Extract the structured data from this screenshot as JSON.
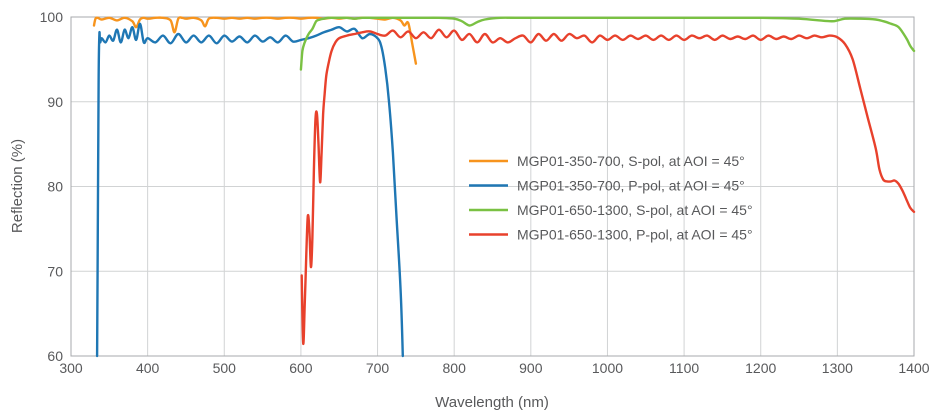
{
  "chart_data": {
    "type": "line",
    "title": "",
    "xlabel": "Wavelength (nm)",
    "ylabel": "Reflection (%)",
    "xlim": [
      300,
      1400
    ],
    "ylim": [
      60,
      100
    ],
    "xticks": [
      300,
      400,
      500,
      600,
      700,
      800,
      900,
      1000,
      1100,
      1200,
      1300,
      1400
    ],
    "yticks": [
      60,
      70,
      80,
      90,
      100
    ],
    "grid": true,
    "legend_position": "center-right",
    "series": [
      {
        "name": "MGP01-350-700, S-pol, at AOI = 45°",
        "color": "#f7941d",
        "x": [
          330,
          332,
          335,
          340,
          350,
          360,
          370,
          380,
          385,
          390,
          395,
          400,
          410,
          420,
          430,
          435,
          440,
          445,
          450,
          460,
          470,
          475,
          480,
          490,
          500,
          510,
          520,
          530,
          540,
          550,
          560,
          570,
          580,
          590,
          600,
          610,
          620,
          630,
          640,
          650,
          660,
          670,
          680,
          690,
          700,
          710,
          720,
          730,
          735,
          740,
          745,
          750
        ],
        "y": [
          99.0,
          99.8,
          99.9,
          99.7,
          99.9,
          99.6,
          99.9,
          99.5,
          98.8,
          99.7,
          99.9,
          99.8,
          99.9,
          99.9,
          99.6,
          98.2,
          99.8,
          99.9,
          99.8,
          99.9,
          99.6,
          98.9,
          99.8,
          99.9,
          99.8,
          99.9,
          99.8,
          99.9,
          99.8,
          99.9,
          99.9,
          99.8,
          99.9,
          99.9,
          99.8,
          99.9,
          99.9,
          99.8,
          99.9,
          99.8,
          99.9,
          99.8,
          99.9,
          99.9,
          99.8,
          99.7,
          99.9,
          99.6,
          99.0,
          99.3,
          97.0,
          94.5
        ]
      },
      {
        "name": "MGP01-350-700, P-pol, at AOI = 45°",
        "color": "#1f77b4",
        "x": [
          334,
          335,
          336,
          337,
          338,
          340,
          345,
          350,
          355,
          360,
          365,
          370,
          375,
          380,
          385,
          390,
          395,
          400,
          410,
          420,
          430,
          440,
          450,
          460,
          470,
          480,
          490,
          500,
          510,
          520,
          530,
          540,
          550,
          560,
          570,
          580,
          590,
          600,
          610,
          620,
          630,
          640,
          650,
          660,
          670,
          680,
          690,
          700,
          705,
          710,
          715,
          720,
          725,
          730,
          733
        ],
        "y": [
          60,
          75,
          92,
          98.0,
          97.0,
          97.5,
          97.0,
          97.8,
          97.2,
          98.5,
          97.0,
          98.5,
          97.5,
          98.8,
          97.3,
          99.2,
          97.0,
          97.5,
          97.0,
          97.8,
          96.9,
          98.0,
          97.0,
          97.8,
          97.0,
          97.8,
          96.9,
          97.8,
          97.1,
          97.7,
          97.0,
          97.8,
          97.1,
          97.6,
          97.0,
          97.8,
          97.1,
          97.3,
          97.5,
          97.8,
          98.2,
          98.5,
          98.8,
          98.3,
          98.6,
          97.5,
          98.0,
          97.5,
          96.5,
          94.0,
          90.0,
          84.0,
          76.0,
          68.0,
          60
        ]
      },
      {
        "name": "MGP01-650-1300, S-pol, at AOI = 45°",
        "color": "#7ac143",
        "x": [
          600,
          602,
          605,
          610,
          615,
          620,
          625,
          630,
          635,
          640,
          650,
          660,
          670,
          680,
          700,
          720,
          740,
          760,
          780,
          800,
          810,
          820,
          830,
          840,
          860,
          880,
          900,
          950,
          1000,
          1050,
          1100,
          1150,
          1200,
          1250,
          1290,
          1300,
          1310,
          1330,
          1350,
          1360,
          1370,
          1380,
          1390,
          1395,
          1400
        ],
        "y": [
          93.8,
          96.0,
          97.0,
          98.0,
          98.6,
          99.5,
          99.7,
          99.8,
          99.9,
          99.9,
          99.9,
          99.9,
          99.8,
          99.9,
          99.9,
          99.9,
          99.9,
          99.9,
          99.9,
          99.8,
          99.5,
          99.0,
          99.4,
          99.7,
          99.9,
          99.9,
          99.9,
          99.9,
          99.9,
          99.9,
          99.9,
          99.9,
          99.9,
          99.8,
          99.5,
          99.6,
          99.8,
          99.8,
          99.7,
          99.5,
          99.2,
          98.8,
          97.5,
          96.6,
          96.0
        ]
      },
      {
        "name": "MGP01-650-1300, P-pol, at AOI = 45°",
        "color": "#e8412c",
        "x": [
          601,
          603,
          605,
          607,
          609,
          611,
          613,
          615,
          617,
          619,
          621,
          623,
          625,
          627,
          629,
          631,
          633,
          636,
          640,
          645,
          650,
          660,
          670,
          680,
          690,
          700,
          710,
          720,
          730,
          740,
          750,
          760,
          770,
          780,
          790,
          800,
          810,
          820,
          830,
          840,
          850,
          860,
          870,
          880,
          890,
          900,
          910,
          920,
          930,
          940,
          950,
          960,
          970,
          980,
          990,
          1000,
          1010,
          1020,
          1030,
          1040,
          1050,
          1060,
          1070,
          1080,
          1090,
          1100,
          1110,
          1120,
          1130,
          1140,
          1150,
          1160,
          1170,
          1180,
          1190,
          1200,
          1210,
          1220,
          1230,
          1240,
          1250,
          1260,
          1270,
          1280,
          1290,
          1300,
          1310,
          1320,
          1330,
          1340,
          1350,
          1355,
          1360,
          1365,
          1370,
          1375,
          1380,
          1385,
          1390,
          1395,
          1400
        ],
        "y": [
          69.5,
          61.5,
          66.0,
          72.0,
          76.5,
          75.0,
          70.5,
          74.0,
          82.0,
          88.0,
          88.5,
          85.0,
          80.5,
          84.0,
          88.5,
          91.0,
          93.0,
          94.5,
          96.0,
          97.0,
          97.5,
          97.8,
          98.0,
          98.2,
          98.3,
          98.0,
          97.8,
          98.4,
          97.6,
          98.3,
          97.5,
          98.2,
          97.5,
          98.5,
          97.6,
          98.4,
          97.3,
          98.0,
          97.0,
          98.0,
          97.0,
          97.5,
          97.0,
          97.5,
          97.8,
          97.0,
          98.0,
          97.2,
          98.0,
          97.2,
          98.0,
          97.5,
          97.8,
          97.0,
          97.8,
          97.3,
          97.8,
          97.3,
          97.8,
          97.4,
          97.8,
          97.3,
          97.8,
          97.3,
          97.8,
          97.3,
          97.8,
          97.5,
          97.8,
          97.3,
          97.8,
          97.4,
          97.7,
          97.4,
          97.8,
          97.3,
          97.8,
          97.4,
          97.7,
          97.4,
          97.8,
          97.5,
          97.8,
          97.6,
          97.8,
          97.6,
          96.8,
          95.0,
          91.5,
          88.0,
          84.5,
          82.0,
          80.8,
          80.6,
          80.6,
          80.7,
          80.3,
          79.5,
          78.5,
          77.5,
          77.0
        ]
      }
    ]
  }
}
